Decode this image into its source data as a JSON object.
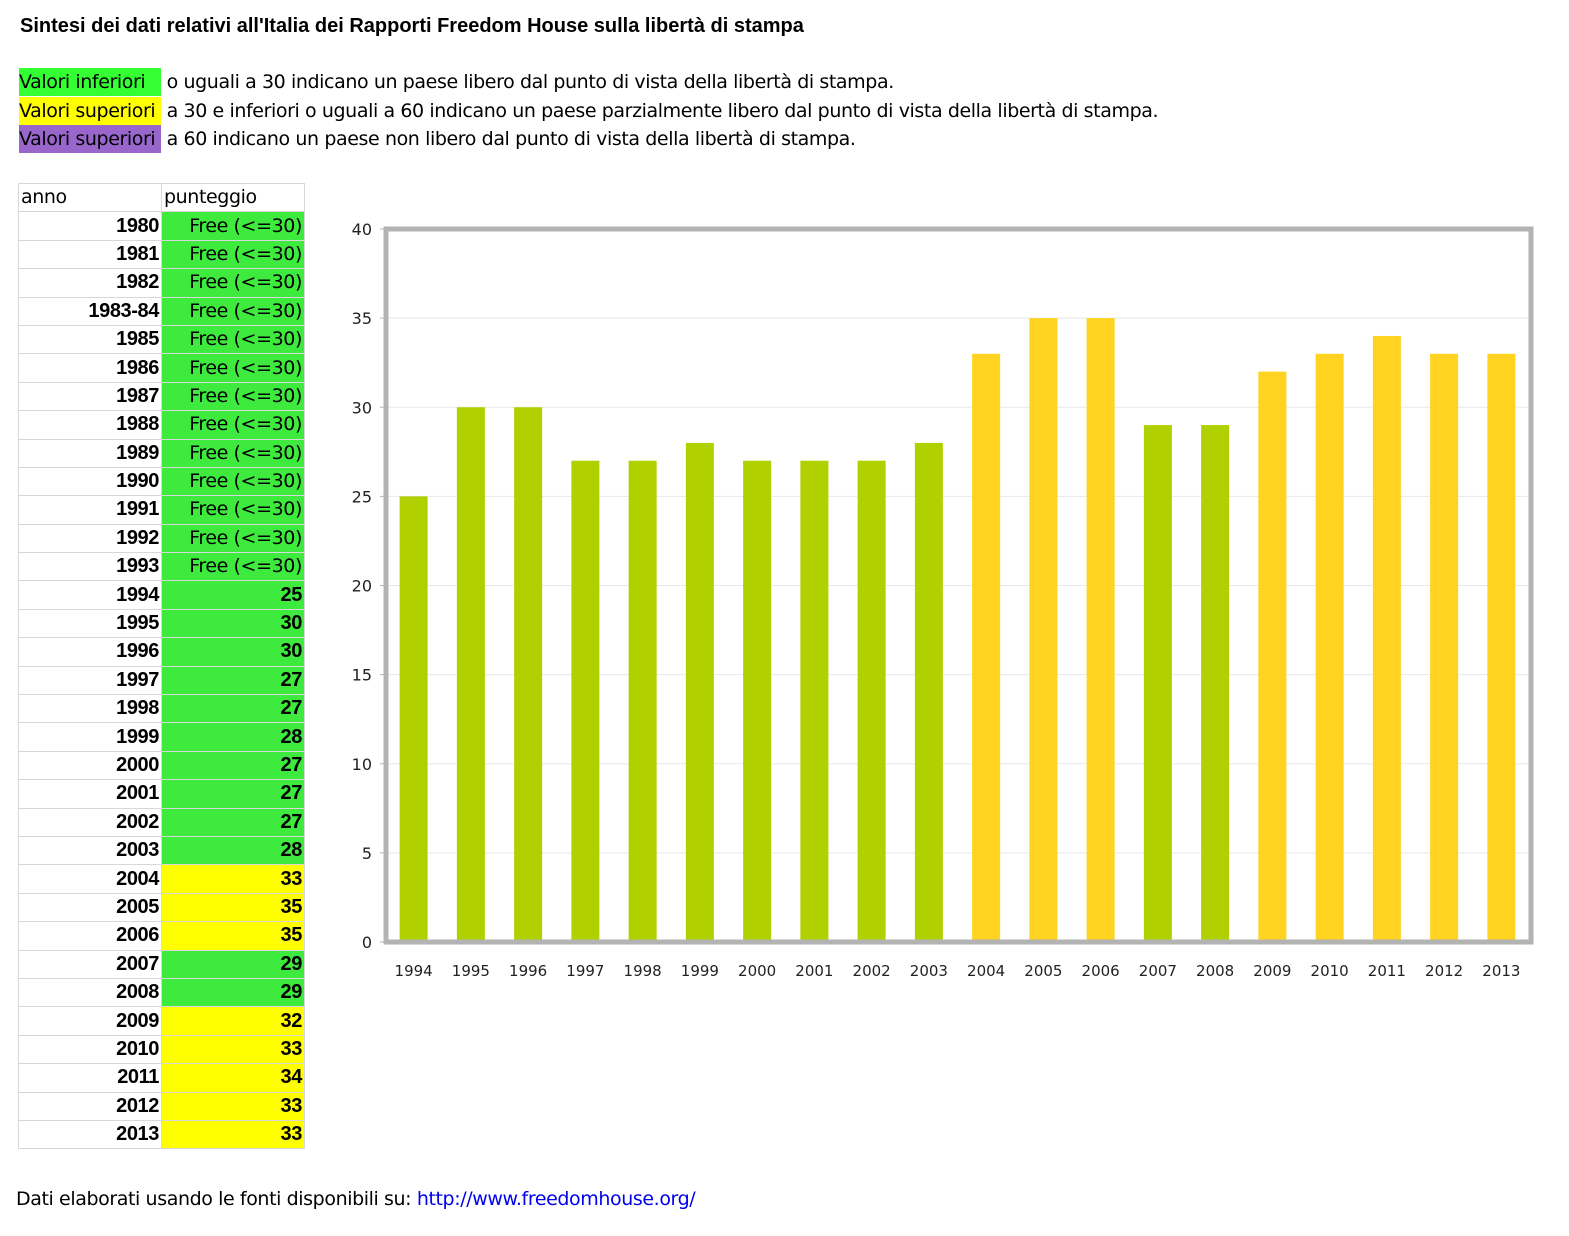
{
  "title": "Sintesi dei dati relativi all'Italia dei Rapporti Freedom House sulla libertà di stampa",
  "legend": [
    {
      "highlight": "Valori inferiori",
      "rest": " o uguali a 30 indicano un paese libero dal punto di vista della libertà di stampa.",
      "color": "#33ff33"
    },
    {
      "highlight": "Valori superiori",
      "rest": " a 30 e inferiori o uguali a 60 indicano un paese parzialmente libero dal punto di vista della libertà di stampa.",
      "color": "#ffff00"
    },
    {
      "highlight": "Valori superiori",
      "rest": " a 60 indicano un paese non libero dal punto di vista della libertà di stampa.",
      "color": "#9966cc"
    }
  ],
  "table": {
    "headers": [
      "anno",
      "punteggio"
    ],
    "rows": [
      [
        "1980",
        "Free (<=30)",
        "g"
      ],
      [
        "1981",
        "Free (<=30)",
        "g"
      ],
      [
        "1982",
        "Free (<=30)",
        "g"
      ],
      [
        "1983-84",
        "Free (<=30)",
        "g"
      ],
      [
        "1985",
        "Free (<=30)",
        "g"
      ],
      [
        "1986",
        "Free (<=30)",
        "g"
      ],
      [
        "1987",
        "Free (<=30)",
        "g"
      ],
      [
        "1988",
        "Free (<=30)",
        "g"
      ],
      [
        "1989",
        "Free (<=30)",
        "g"
      ],
      [
        "1990",
        "Free (<=30)",
        "g"
      ],
      [
        "1991",
        "Free (<=30)",
        "g"
      ],
      [
        "1992",
        "Free (<=30)",
        "g"
      ],
      [
        "1993",
        "Free (<=30)",
        "g"
      ],
      [
        "1994",
        "25",
        "g"
      ],
      [
        "1995",
        "30",
        "g"
      ],
      [
        "1996",
        "30",
        "g"
      ],
      [
        "1997",
        "27",
        "g"
      ],
      [
        "1998",
        "27",
        "g"
      ],
      [
        "1999",
        "28",
        "g"
      ],
      [
        "2000",
        "27",
        "g"
      ],
      [
        "2001",
        "27",
        "g"
      ],
      [
        "2002",
        "27",
        "g"
      ],
      [
        "2003",
        "28",
        "g"
      ],
      [
        "2004",
        "33",
        "y"
      ],
      [
        "2005",
        "35",
        "y"
      ],
      [
        "2006",
        "35",
        "y"
      ],
      [
        "2007",
        "29",
        "g"
      ],
      [
        "2008",
        "29",
        "g"
      ],
      [
        "2009",
        "32",
        "y"
      ],
      [
        "2010",
        "33",
        "y"
      ],
      [
        "2011",
        "34",
        "y"
      ],
      [
        "2012",
        "33",
        "y"
      ],
      [
        "2013",
        "33",
        "y"
      ]
    ],
    "colors": {
      "g": "#3dea3d",
      "y": "#ffff00"
    }
  },
  "chart_data": {
    "type": "bar",
    "categories": [
      "1994",
      "1995",
      "1996",
      "1997",
      "1998",
      "1999",
      "2000",
      "2001",
      "2002",
      "2003",
      "2004",
      "2005",
      "2006",
      "2007",
      "2008",
      "2009",
      "2010",
      "2011",
      "2012",
      "2013"
    ],
    "values": [
      25,
      30,
      30,
      27,
      27,
      28,
      27,
      27,
      27,
      28,
      33,
      35,
      35,
      29,
      29,
      32,
      33,
      34,
      33,
      33
    ],
    "ylim": [
      0,
      40
    ],
    "yticks": [
      0,
      5,
      10,
      15,
      20,
      25,
      30,
      35,
      40
    ],
    "title": "",
    "xlabel": "",
    "ylabel": "",
    "colors": {
      "free": "#b0d000",
      "partly": "#ffd320"
    },
    "threshold": 30,
    "grid": true
  },
  "footer": {
    "text": "Dati elaborati usando le fonti disponibili su: ",
    "link": "http://www.freedomhouse.org/"
  }
}
